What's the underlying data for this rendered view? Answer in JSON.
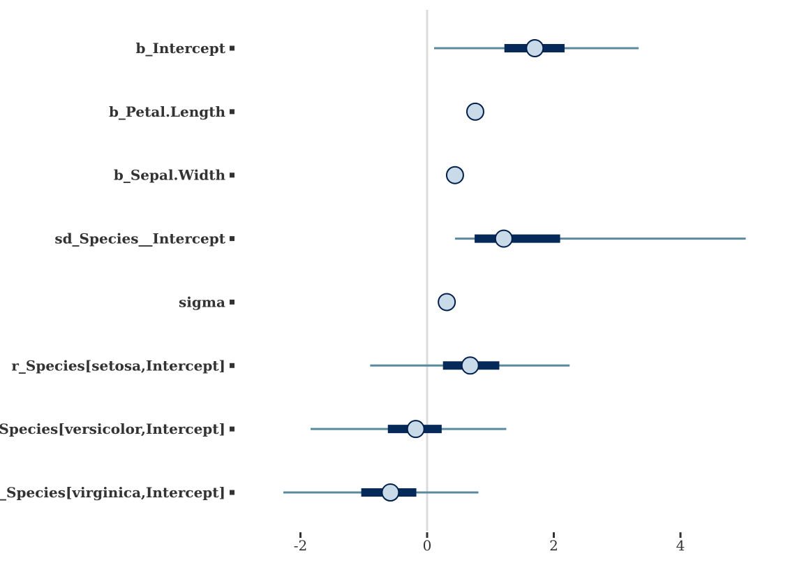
{
  "chart_data": {
    "type": "interval",
    "parameters": [
      {
        "name": "b_Intercept",
        "estimate": 1.7,
        "inner": [
          1.22,
          2.17
        ],
        "outer": [
          0.11,
          3.34
        ]
      },
      {
        "name": "b_Petal.Length",
        "estimate": 0.76,
        "inner": [
          0.73,
          0.79
        ],
        "outer": [
          0.7,
          0.82
        ]
      },
      {
        "name": "b_Sepal.Width",
        "estimate": 0.44,
        "inner": [
          0.41,
          0.48
        ],
        "outer": [
          0.37,
          0.52
        ]
      },
      {
        "name": "sd_Species__Intercept",
        "estimate": 1.21,
        "inner": [
          0.75,
          2.1
        ],
        "outer": [
          0.44,
          5.03
        ]
      },
      {
        "name": "sigma",
        "estimate": 0.31,
        "inner": [
          0.29,
          0.33
        ],
        "outer": [
          0.27,
          0.35
        ]
      },
      {
        "name": "r_Species[setosa,Intercept]",
        "estimate": 0.68,
        "inner": [
          0.25,
          1.14
        ],
        "outer": [
          -0.9,
          2.25
        ]
      },
      {
        "name": "r_Species[versicolor,Intercept]",
        "estimate": -0.18,
        "inner": [
          -0.62,
          0.23
        ],
        "outer": [
          -1.84,
          1.25
        ]
      },
      {
        "name": "r_Species[virginica,Intercept]",
        "estimate": -0.58,
        "inner": [
          -1.04,
          -0.17
        ],
        "outer": [
          -2.27,
          0.81
        ]
      }
    ],
    "xticks": [
      -2,
      0,
      2,
      4
    ],
    "xtick_labels": [
      "-2",
      "0",
      "2",
      "4"
    ],
    "xlim": [
      -2.5,
      5.3
    ],
    "reference_line": 0,
    "title": "",
    "xlabel": "",
    "ylabel": "",
    "grid": false,
    "colors": {
      "outer_interval": "#5b8a9e",
      "inner_interval": "#052a5a",
      "point_fill": "#c9dbe8",
      "point_stroke": "#011f4b",
      "reference_line": "#dcdcdc",
      "label_text": "#333333",
      "ticks": "#333333"
    }
  }
}
